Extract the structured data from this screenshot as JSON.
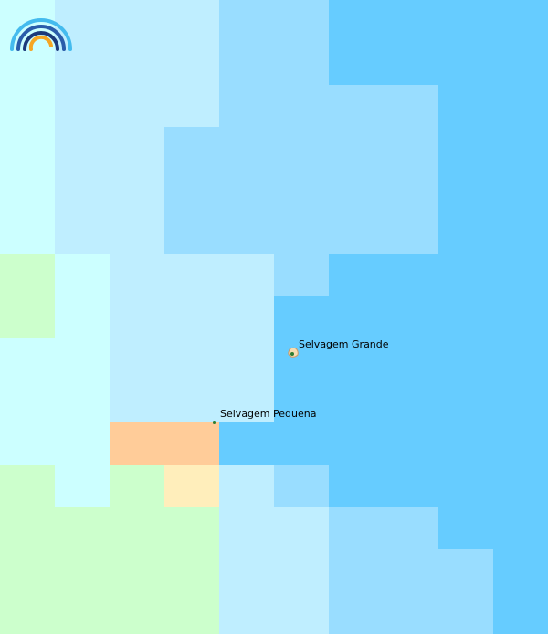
{
  "map": {
    "background": "#66ccff",
    "palette": {
      "a": "#ccffff",
      "b": "#bfeeff",
      "c": "#99ddff",
      "d": "#66ccff",
      "e": "#ccffcc",
      "f": "#ffcc99",
      "g": "#ffeebb"
    },
    "grid": [
      "abbbccdddd",
      "abbbccdddd",
      "abbbccccdd",
      "abbcccccdd",
      "abbcccccdd",
      "abbcccccdd",
      "eabbbcdddd",
      "eabbbddddd",
      "aabbbddddd",
      "aabbbddddd",
      "aaffdddddd",
      "eaegbcdddd",
      "eeeebbccdd",
      "eeeebbcccd",
      "eeeebbcccd"
    ]
  },
  "logo_icon": "rainbow-arc-icon",
  "features": [
    {
      "name": "Selvagem Grande",
      "type": "island"
    },
    {
      "name": "Selvagem Pequena",
      "type": "islet"
    }
  ]
}
